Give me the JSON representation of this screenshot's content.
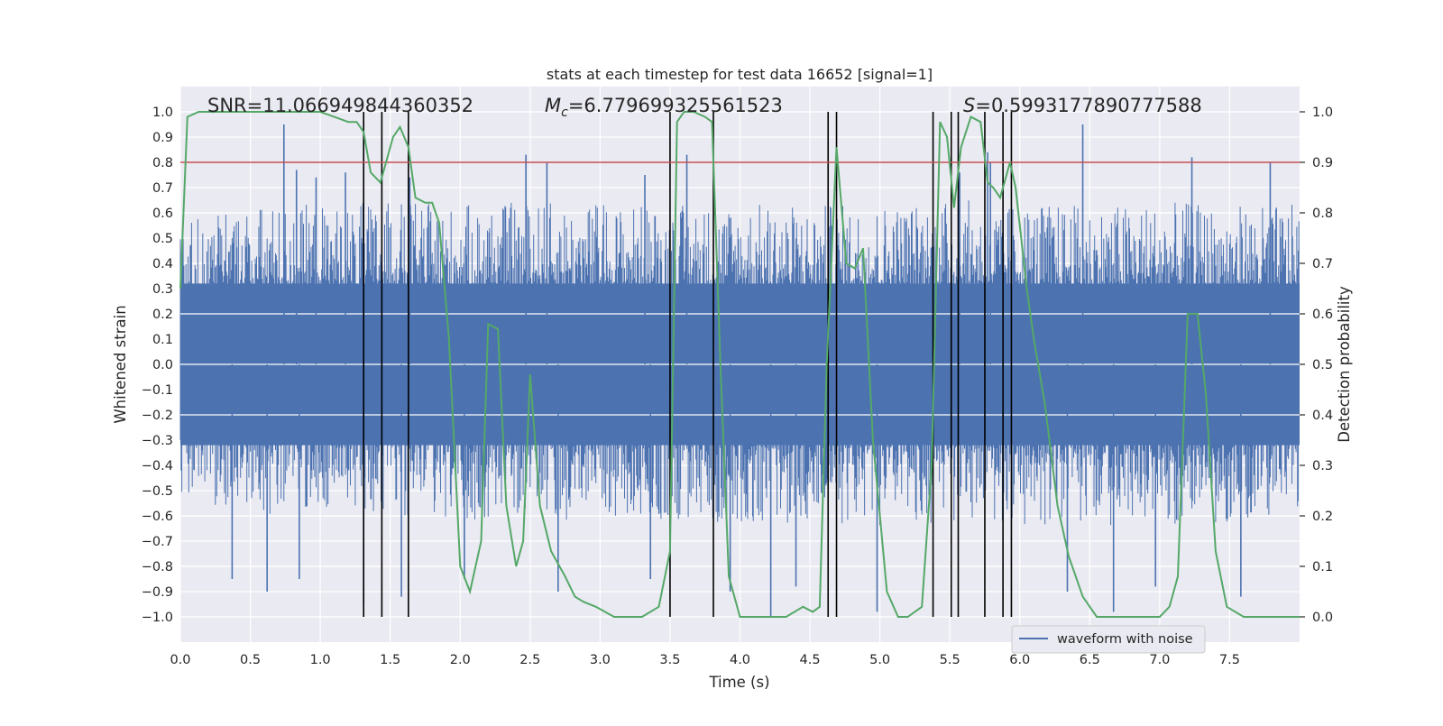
{
  "chart_data": {
    "type": "line",
    "title": "stats at each timestep for test data 16652 [signal=1]",
    "xlabel": "Time (s)",
    "ylabel": "Whitened strain",
    "ylabel_right": "Detection probability",
    "xlim": [
      0.0,
      8.0
    ],
    "ylim": [
      -1.1,
      1.1
    ],
    "ylim_right": [
      -0.05,
      1.05
    ],
    "x_ticks": [
      "0.0",
      "0.5",
      "1.0",
      "1.5",
      "2.0",
      "2.5",
      "3.0",
      "3.5",
      "4.0",
      "4.5",
      "5.0",
      "5.5",
      "6.0",
      "6.5",
      "7.0",
      "7.5"
    ],
    "y_ticks": [
      "1.0",
      "0.9",
      "0.8",
      "0.7",
      "0.6",
      "0.5",
      "0.4",
      "0.3",
      "0.2",
      "0.1",
      "0.0",
      "-0.1",
      "-0.2",
      "-0.3",
      "-0.4",
      "-0.5",
      "-0.6",
      "-0.7",
      "-0.8",
      "-0.9",
      "-1.0"
    ],
    "y_ticks_right": [
      "1.0",
      "0.9",
      "0.8",
      "0.7",
      "0.6",
      "0.5",
      "0.4",
      "0.3",
      "0.2",
      "0.1",
      "0.0"
    ],
    "annotations": {
      "snr": "SNR=11.066949844360352",
      "mc_prefix": "M",
      "mc_sub": "c",
      "mc_value": "=6.779699325561523",
      "s_prefix": "S",
      "s_value": "=0.5993177890777588"
    },
    "threshold": {
      "value": 0.9,
      "color": "#c44e52"
    },
    "event_markers": [
      1.31,
      1.44,
      1.63,
      3.5,
      3.81,
      4.63,
      4.69,
      5.38,
      5.51,
      5.56,
      5.75,
      5.88,
      5.94
    ],
    "waveform": {
      "name": "waveform with noise",
      "color": "#4c72b0",
      "envelope": {
        "x": [
          0.0,
          0.5,
          1.0,
          1.5,
          2.0,
          2.5,
          3.0,
          3.5,
          4.0,
          4.5,
          5.0,
          5.5,
          6.0,
          6.5,
          7.0,
          7.5,
          8.0
        ],
        "upper": [
          0.5,
          0.55,
          0.55,
          0.56,
          0.55,
          0.56,
          0.56,
          0.55,
          0.56,
          0.55,
          0.56,
          0.57,
          0.56,
          0.55,
          0.56,
          0.55,
          0.55
        ],
        "lower": [
          -0.45,
          -0.52,
          -0.5,
          -0.52,
          -0.55,
          -0.54,
          -0.54,
          -0.55,
          -0.55,
          -0.55,
          -0.56,
          -0.55,
          -0.56,
          -0.55,
          -0.56,
          -0.55,
          -0.5
        ]
      },
      "peaks": [
        {
          "x": 0.37,
          "y": -0.85
        },
        {
          "x": 0.62,
          "y": -0.9
        },
        {
          "x": 0.74,
          "y": 0.95
        },
        {
          "x": 0.83,
          "y": 0.77
        },
        {
          "x": 0.85,
          "y": -0.85
        },
        {
          "x": 0.97,
          "y": 0.74
        },
        {
          "x": 1.18,
          "y": 0.76
        },
        {
          "x": 1.31,
          "y": -0.95
        },
        {
          "x": 1.58,
          "y": -0.92
        },
        {
          "x": 1.64,
          "y": 0.74
        },
        {
          "x": 2.03,
          "y": -0.85
        },
        {
          "x": 2.47,
          "y": 0.83
        },
        {
          "x": 2.62,
          "y": 0.8
        },
        {
          "x": 2.7,
          "y": -0.9
        },
        {
          "x": 3.32,
          "y": 0.75
        },
        {
          "x": 3.36,
          "y": -0.85
        },
        {
          "x": 3.62,
          "y": 0.83
        },
        {
          "x": 3.93,
          "y": -0.9
        },
        {
          "x": 4.22,
          "y": -1.0
        },
        {
          "x": 4.4,
          "y": -0.88
        },
        {
          "x": 4.98,
          "y": -0.98
        },
        {
          "x": 5.57,
          "y": 0.76
        },
        {
          "x": 5.77,
          "y": 0.84
        },
        {
          "x": 5.79,
          "y": 0.8
        },
        {
          "x": 6.34,
          "y": -0.9
        },
        {
          "x": 6.45,
          "y": 0.95
        },
        {
          "x": 6.67,
          "y": -0.98
        },
        {
          "x": 6.97,
          "y": -0.88
        },
        {
          "x": 7.23,
          "y": 0.82
        },
        {
          "x": 7.58,
          "y": -0.92
        },
        {
          "x": 7.79,
          "y": 0.8
        }
      ]
    },
    "probability": {
      "name": "detection probability",
      "color": "#55a868",
      "x": [
        0.0,
        0.05,
        0.13,
        0.3,
        0.5,
        0.8,
        1.0,
        1.1,
        1.2,
        1.26,
        1.31,
        1.36,
        1.43,
        1.52,
        1.57,
        1.63,
        1.68,
        1.75,
        1.8,
        1.85,
        1.92,
        2.0,
        2.07,
        2.15,
        2.2,
        2.27,
        2.33,
        2.4,
        2.45,
        2.5,
        2.57,
        2.65,
        2.75,
        2.82,
        2.88,
        2.97,
        3.1,
        3.3,
        3.42,
        3.5,
        3.55,
        3.6,
        3.67,
        3.75,
        3.8,
        3.86,
        3.92,
        4.0,
        4.2,
        4.33,
        4.45,
        4.52,
        4.57,
        4.62,
        4.69,
        4.76,
        4.82,
        4.88,
        4.95,
        5.05,
        5.13,
        5.2,
        5.3,
        5.37,
        5.43,
        5.48,
        5.53,
        5.58,
        5.65,
        5.72,
        5.77,
        5.81,
        5.86,
        5.89,
        5.93,
        5.97,
        6.01,
        6.05,
        6.1,
        6.18,
        6.27,
        6.35,
        6.45,
        6.55,
        6.7,
        6.85,
        7.0,
        7.07,
        7.13,
        7.2,
        7.27,
        7.33,
        7.4,
        7.48,
        7.6,
        8.0
      ],
      "y": [
        0.65,
        0.99,
        1.0,
        1.0,
        1.0,
        1.0,
        1.0,
        0.99,
        0.98,
        0.98,
        0.96,
        0.88,
        0.86,
        0.95,
        0.97,
        0.93,
        0.83,
        0.82,
        0.82,
        0.78,
        0.55,
        0.1,
        0.05,
        0.15,
        0.58,
        0.57,
        0.22,
        0.1,
        0.15,
        0.48,
        0.22,
        0.13,
        0.08,
        0.04,
        0.03,
        0.02,
        0.0,
        0.0,
        0.02,
        0.13,
        0.98,
        1.0,
        1.0,
        0.99,
        0.98,
        0.5,
        0.08,
        0.0,
        0.0,
        0.0,
        0.02,
        0.01,
        0.02,
        0.5,
        0.93,
        0.7,
        0.69,
        0.73,
        0.35,
        0.05,
        0.0,
        0.0,
        0.02,
        0.3,
        0.98,
        0.95,
        0.81,
        0.93,
        0.99,
        0.98,
        0.86,
        0.85,
        0.83,
        0.86,
        0.9,
        0.85,
        0.75,
        0.65,
        0.55,
        0.42,
        0.22,
        0.12,
        0.04,
        0.0,
        0.0,
        0.0,
        0.0,
        0.02,
        0.08,
        0.6,
        0.6,
        0.44,
        0.13,
        0.02,
        0.0,
        0.0
      ]
    },
    "legend": {
      "location": "lower-right",
      "entries": [
        "waveform with noise"
      ]
    },
    "grid": true
  }
}
